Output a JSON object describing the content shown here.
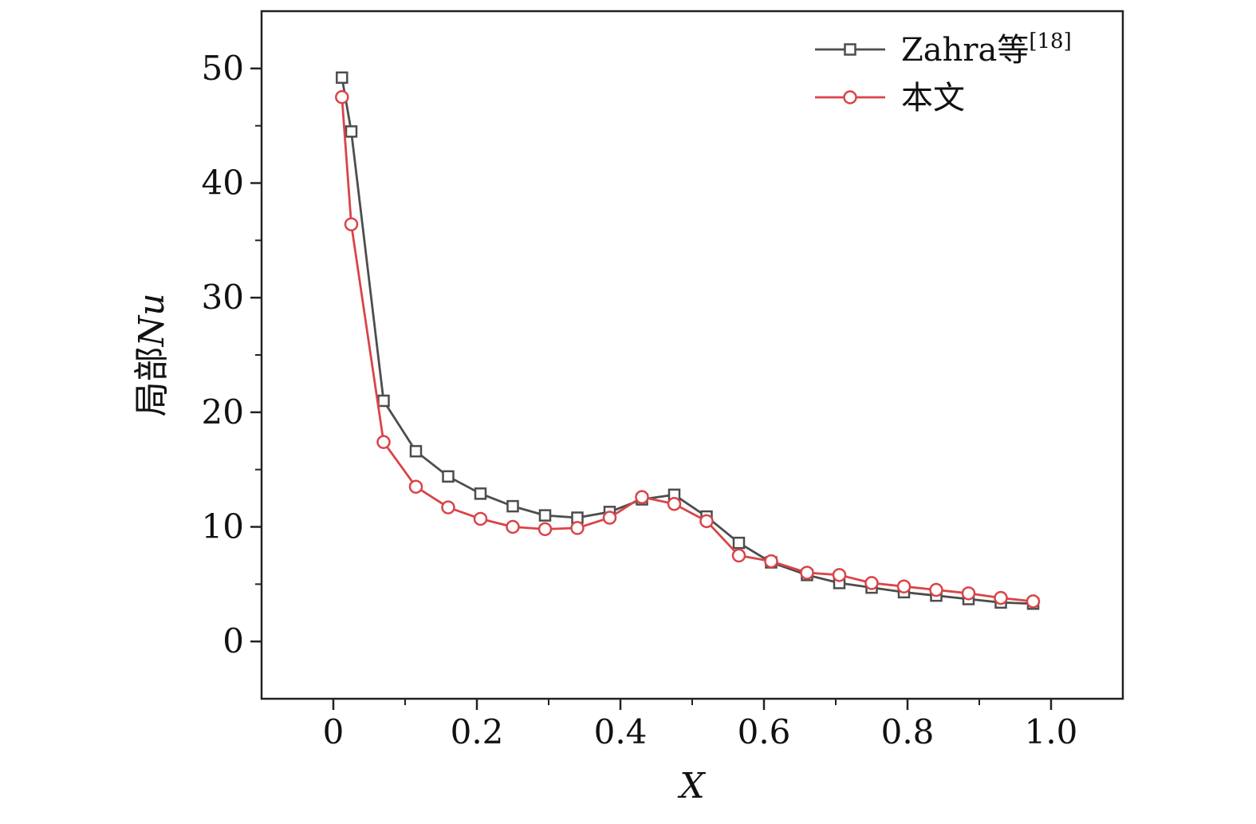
{
  "chart_data": {
    "type": "line",
    "xlabel": "X",
    "ylabel_prefix": "局部",
    "ylabel_var": "Nu",
    "xlim": [
      -0.1,
      1.1
    ],
    "ylim": [
      -5,
      55
    ],
    "x_ticks": [
      0,
      0.2,
      0.4,
      0.6,
      0.8,
      1.0
    ],
    "x_tick_labels": [
      "0",
      "0.2",
      "0.4",
      "0.6",
      "0.8",
      "1.0"
    ],
    "y_ticks": [
      0,
      10,
      20,
      30,
      40,
      50
    ],
    "y_tick_labels": [
      "0",
      "10",
      "20",
      "30",
      "40",
      "50"
    ],
    "x_minor_ticks": [
      0.1,
      0.3,
      0.5,
      0.7,
      0.9
    ],
    "y_minor_ticks": [
      5,
      15,
      25,
      35,
      45
    ],
    "legend_position": "top-right",
    "series": [
      {
        "name": "Zahra等",
        "name_sup": "[18]",
        "marker": "square",
        "color": "#4d4d4d",
        "x": [
          0.012,
          0.025,
          0.07,
          0.115,
          0.16,
          0.205,
          0.25,
          0.295,
          0.34,
          0.385,
          0.43,
          0.475,
          0.52,
          0.565,
          0.61,
          0.66,
          0.705,
          0.75,
          0.795,
          0.84,
          0.885,
          0.93,
          0.975
        ],
        "y": [
          49.2,
          44.5,
          21.0,
          16.6,
          14.4,
          12.9,
          11.8,
          11.0,
          10.8,
          11.3,
          12.4,
          12.8,
          10.9,
          8.6,
          6.9,
          5.8,
          5.1,
          4.7,
          4.3,
          4.0,
          3.7,
          3.4,
          3.3
        ]
      },
      {
        "name": "本文",
        "marker": "circle",
        "color": "#d94448",
        "x": [
          0.012,
          0.025,
          0.07,
          0.115,
          0.16,
          0.205,
          0.25,
          0.295,
          0.34,
          0.385,
          0.43,
          0.475,
          0.52,
          0.565,
          0.61,
          0.66,
          0.705,
          0.75,
          0.795,
          0.84,
          0.885,
          0.93,
          0.975
        ],
        "y": [
          47.5,
          36.4,
          17.4,
          13.5,
          11.7,
          10.7,
          10.0,
          9.8,
          9.9,
          10.8,
          12.6,
          12.0,
          10.5,
          7.5,
          7.0,
          6.0,
          5.8,
          5.1,
          4.8,
          4.5,
          4.2,
          3.8,
          3.5
        ]
      }
    ]
  }
}
